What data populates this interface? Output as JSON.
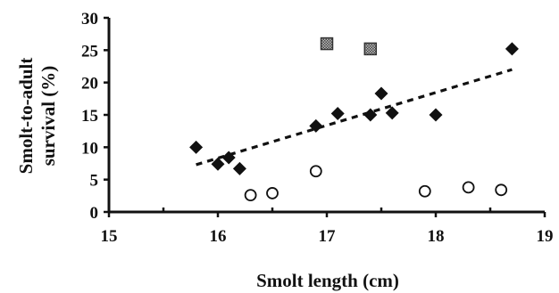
{
  "chart_data": {
    "type": "scatter",
    "xlabel": "Smolt length (cm)",
    "ylabel_line1": "Smolt-to-adult",
    "ylabel_line2": "survival (%)",
    "xlim": [
      15,
      19
    ],
    "ylim": [
      0,
      30
    ],
    "x_ticks": [
      "15",
      "16",
      "17",
      "18",
      "19"
    ],
    "y_ticks": [
      "0",
      "5",
      "10",
      "15",
      "20",
      "25",
      "30"
    ],
    "grid": false,
    "series": [
      {
        "marker": "filled-diamond",
        "color": "#111111",
        "points": [
          [
            15.8,
            10.0
          ],
          [
            16.0,
            7.4
          ],
          [
            16.1,
            8.4
          ],
          [
            16.2,
            6.7
          ],
          [
            16.9,
            13.3
          ],
          [
            17.1,
            15.2
          ],
          [
            17.4,
            15.0
          ],
          [
            17.5,
            18.3
          ],
          [
            17.6,
            15.3
          ],
          [
            18.0,
            15.0
          ],
          [
            18.7,
            25.2
          ]
        ]
      },
      {
        "marker": "open-circle",
        "color": "#111111",
        "points": [
          [
            16.3,
            2.6
          ],
          [
            16.5,
            2.9
          ],
          [
            16.9,
            6.3
          ],
          [
            17.9,
            3.2
          ],
          [
            18.3,
            3.8
          ],
          [
            18.6,
            3.4
          ]
        ]
      },
      {
        "marker": "hatched-square",
        "color": "#555555",
        "points": [
          [
            17.0,
            26.0
          ],
          [
            17.4,
            25.2
          ]
        ]
      }
    ],
    "trendline": {
      "style": "dashed",
      "x": [
        15.8,
        18.7
      ],
      "y": [
        7.3,
        22.0
      ]
    }
  }
}
